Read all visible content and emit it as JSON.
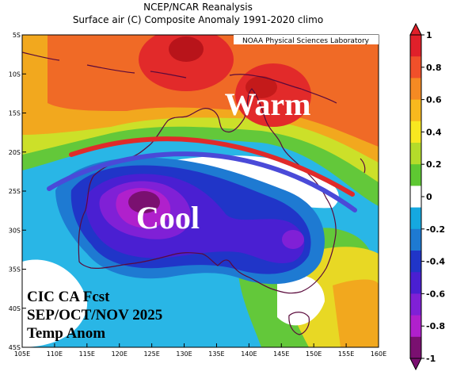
{
  "title_line1": "NCEP/NCAR Reanalysis",
  "title_line2": "Surface air (C) Composite Anomaly 1991-2020 climo",
  "credit": "NOAA Physical Sciences Laboratory",
  "annotations": {
    "warm": "Warm",
    "cool": "Cool",
    "forecast_line1": "CIC CA Fcst",
    "forecast_line2": "SEP/OCT/NOV 2025",
    "forecast_line3": "Temp Anom"
  },
  "axes": {
    "lat_labels": [
      "5S",
      "10S",
      "15S",
      "20S",
      "25S",
      "30S",
      "35S",
      "40S",
      "45S"
    ],
    "lon_labels": [
      "105E",
      "110E",
      "115E",
      "120E",
      "125E",
      "130E",
      "135E",
      "140E",
      "145E",
      "150E",
      "155E",
      "160E"
    ]
  },
  "colorbar": {
    "tick_labels": [
      "1",
      "0.8",
      "0.6",
      "0.4",
      "0.2",
      "0",
      "-0.2",
      "-0.4",
      "-0.6",
      "-0.8",
      "-1"
    ],
    "colors_top_to_bottom": [
      "#e0202a",
      "#f0502a",
      "#f58a23",
      "#f8b91e",
      "#f8e820",
      "#b4dc2a",
      "#5ec832",
      "#ffffff",
      "#15a8e0",
      "#1e7ad2",
      "#2035c8",
      "#4a1fd2",
      "#8020d6",
      "#b020cc",
      "#7a1070"
    ],
    "range": [
      -1,
      1
    ]
  },
  "colors": {
    "warm_max": "#c41a1a",
    "cool_max": "#600a70",
    "coastline": "#5a0a3c",
    "red_arc": "#e02a2a",
    "blue_arc": "#4a4ad8"
  }
}
